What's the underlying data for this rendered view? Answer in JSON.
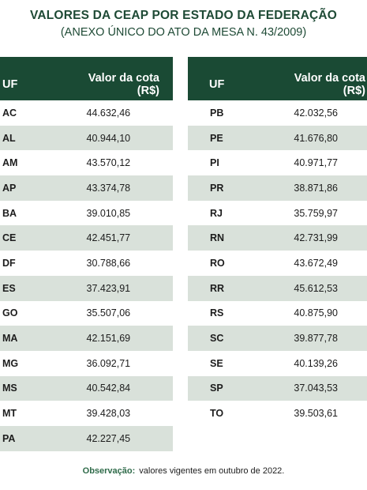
{
  "header": {
    "title": "VALORES DA CEAP POR ESTADO DA FEDERAÇÃO",
    "subtitle": "(ANEXO ÚNICO DO ATO DA MESA N. 43/2009)"
  },
  "columns": {
    "uf": "UF",
    "value": "Valor da cota (R$)"
  },
  "colors": {
    "header_bg": "#1a4a34",
    "stripe": "#d9e1da",
    "title": "#1e4a35"
  },
  "left_rows": [
    {
      "uf": "AC",
      "value": "44.632,46"
    },
    {
      "uf": "AL",
      "value": "40.944,10"
    },
    {
      "uf": "AM",
      "value": "43.570,12"
    },
    {
      "uf": "AP",
      "value": "43.374,78"
    },
    {
      "uf": "BA",
      "value": "39.010,85"
    },
    {
      "uf": "CE",
      "value": "42.451,77"
    },
    {
      "uf": "DF",
      "value": "30.788,66"
    },
    {
      "uf": "ES",
      "value": "37.423,91"
    },
    {
      "uf": "GO",
      "value": "35.507,06"
    },
    {
      "uf": "MA",
      "value": "42.151,69"
    },
    {
      "uf": "MG",
      "value": "36.092,71"
    },
    {
      "uf": "MS",
      "value": "40.542,84"
    },
    {
      "uf": "MT",
      "value": "39.428,03"
    },
    {
      "uf": "PA",
      "value": "42.227,45"
    }
  ],
  "right_rows": [
    {
      "uf": "PB",
      "value": "42.032,56"
    },
    {
      "uf": "PE",
      "value": "41.676,80"
    },
    {
      "uf": "PI",
      "value": "40.971,77"
    },
    {
      "uf": "PR",
      "value": "38.871,86"
    },
    {
      "uf": "RJ",
      "value": "35.759,97"
    },
    {
      "uf": "RN",
      "value": "42.731,99"
    },
    {
      "uf": "RO",
      "value": "43.672,49"
    },
    {
      "uf": "RR",
      "value": "45.612,53"
    },
    {
      "uf": "RS",
      "value": "40.875,90"
    },
    {
      "uf": "SC",
      "value": "39.877,78"
    },
    {
      "uf": "SE",
      "value": "40.139,26"
    },
    {
      "uf": "SP",
      "value": "37.043,53"
    },
    {
      "uf": "TO",
      "value": "39.503,61"
    }
  ],
  "footer": {
    "label": "Observação:",
    "text": "valores vigentes em outubro de 2022."
  }
}
